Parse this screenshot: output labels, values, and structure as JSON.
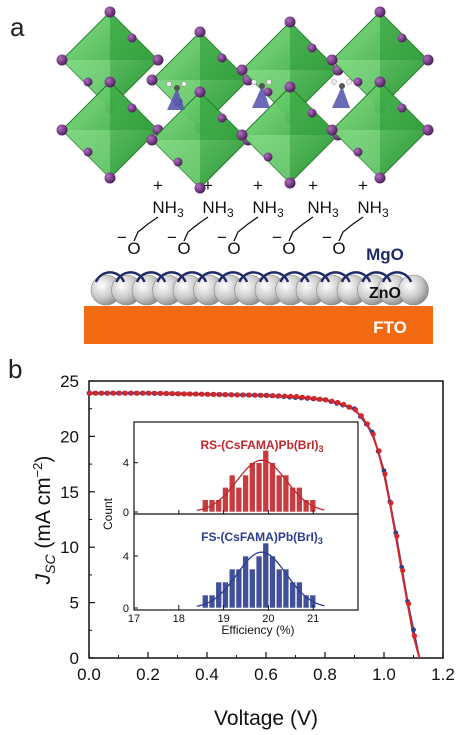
{
  "panel_a": {
    "letter": "a",
    "ammonium_label": "NH",
    "ammonium_sub": "3",
    "plus": "+",
    "minus": "−",
    "oxygen": "O",
    "layers": [
      {
        "name": "MgO",
        "color": "#1f2a66"
      },
      {
        "name": "ZnO",
        "color": "#111111"
      },
      {
        "name": "FTO",
        "color": "#ffffff",
        "fill": "#f26b12"
      }
    ],
    "colors": {
      "octahedron": "#3cb83c",
      "iodide": "#6a2a7a",
      "cation": "#5a5ab0"
    }
  },
  "panel_b": {
    "letter": "b"
  },
  "chart_data": [
    {
      "type": "line",
      "xlabel": "Voltage (V)",
      "ylabel_main": "J",
      "ylabel_sub": "SC",
      "ylabel_unit": " (mA cm",
      "ylabel_exp": "−2",
      "ylabel_close": ")",
      "xlim": [
        0.0,
        1.2
      ],
      "ylim": [
        0,
        25
      ],
      "xticks": [
        "0.0",
        "0.2",
        "0.4",
        "0.6",
        "0.8",
        "1.0",
        "1.2"
      ],
      "yticks": [
        "0",
        "5",
        "10",
        "15",
        "20",
        "25"
      ],
      "series": [
        {
          "color": "#d62728",
          "x": [
            0.0,
            0.1,
            0.2,
            0.3,
            0.4,
            0.5,
            0.6,
            0.7,
            0.8,
            0.85,
            0.9,
            0.93,
            0.96,
            0.98,
            1.0,
            1.02,
            1.04,
            1.06,
            1.08,
            1.1,
            1.12
          ],
          "y": [
            23.9,
            23.9,
            23.9,
            23.85,
            23.8,
            23.75,
            23.7,
            23.6,
            23.3,
            23.0,
            22.4,
            21.6,
            20.2,
            18.7,
            16.6,
            14.0,
            11.0,
            7.9,
            4.9,
            2.0,
            0
          ]
        },
        {
          "color": "#2c3e8f",
          "x": [
            0.0,
            0.2,
            0.4,
            0.6,
            0.8,
            0.9,
            0.96,
            1.0,
            1.04,
            1.08,
            1.12
          ],
          "y": [
            23.9,
            23.9,
            23.8,
            23.7,
            23.3,
            22.5,
            20.4,
            16.9,
            11.3,
            5.1,
            0
          ]
        }
      ]
    },
    {
      "type": "bar",
      "title": "RS-(CsFAMA)Pb(BrI)",
      "title_sub": "3",
      "title_color": "#c0272d",
      "bar_color": "#c0272d",
      "categories": [
        18.6,
        18.75,
        18.9,
        19.05,
        19.2,
        19.35,
        19.5,
        19.65,
        19.8,
        19.95,
        20.1,
        20.25,
        20.4,
        20.55,
        20.7,
        20.85,
        21.0
      ],
      "values": [
        1,
        1,
        1,
        2,
        3,
        2,
        3,
        4,
        4,
        5,
        4,
        3,
        3,
        2,
        2,
        1,
        1
      ],
      "fit": {
        "mean": 19.85,
        "sigma": 0.55,
        "peak": 4.2
      },
      "ylabel": "Count",
      "yticks": [
        "0",
        "4"
      ],
      "ylim": [
        0,
        6
      ]
    },
    {
      "type": "bar",
      "title": "FS-(CsFAMA)Pb(BrI)",
      "title_sub": "3",
      "title_color": "#2c3e8f",
      "bar_color": "#2c3e8f",
      "categories": [
        18.6,
        18.75,
        18.9,
        19.05,
        19.2,
        19.35,
        19.5,
        19.65,
        19.8,
        19.95,
        20.1,
        20.25,
        20.4,
        20.55,
        20.7,
        20.85,
        21.0
      ],
      "values": [
        1,
        1,
        2,
        2,
        3,
        3,
        4,
        3,
        4,
        5,
        4,
        3,
        3,
        2,
        2,
        1,
        1
      ],
      "fit": {
        "mean": 19.85,
        "sigma": 0.55,
        "peak": 4.3
      },
      "xlabel": "Efficiency (%)",
      "xticks": [
        "17",
        "18",
        "19",
        "20",
        "21"
      ],
      "yticks": [
        "0",
        "4"
      ],
      "ylim": [
        0,
        6
      ],
      "xlim": [
        17,
        22
      ]
    }
  ]
}
